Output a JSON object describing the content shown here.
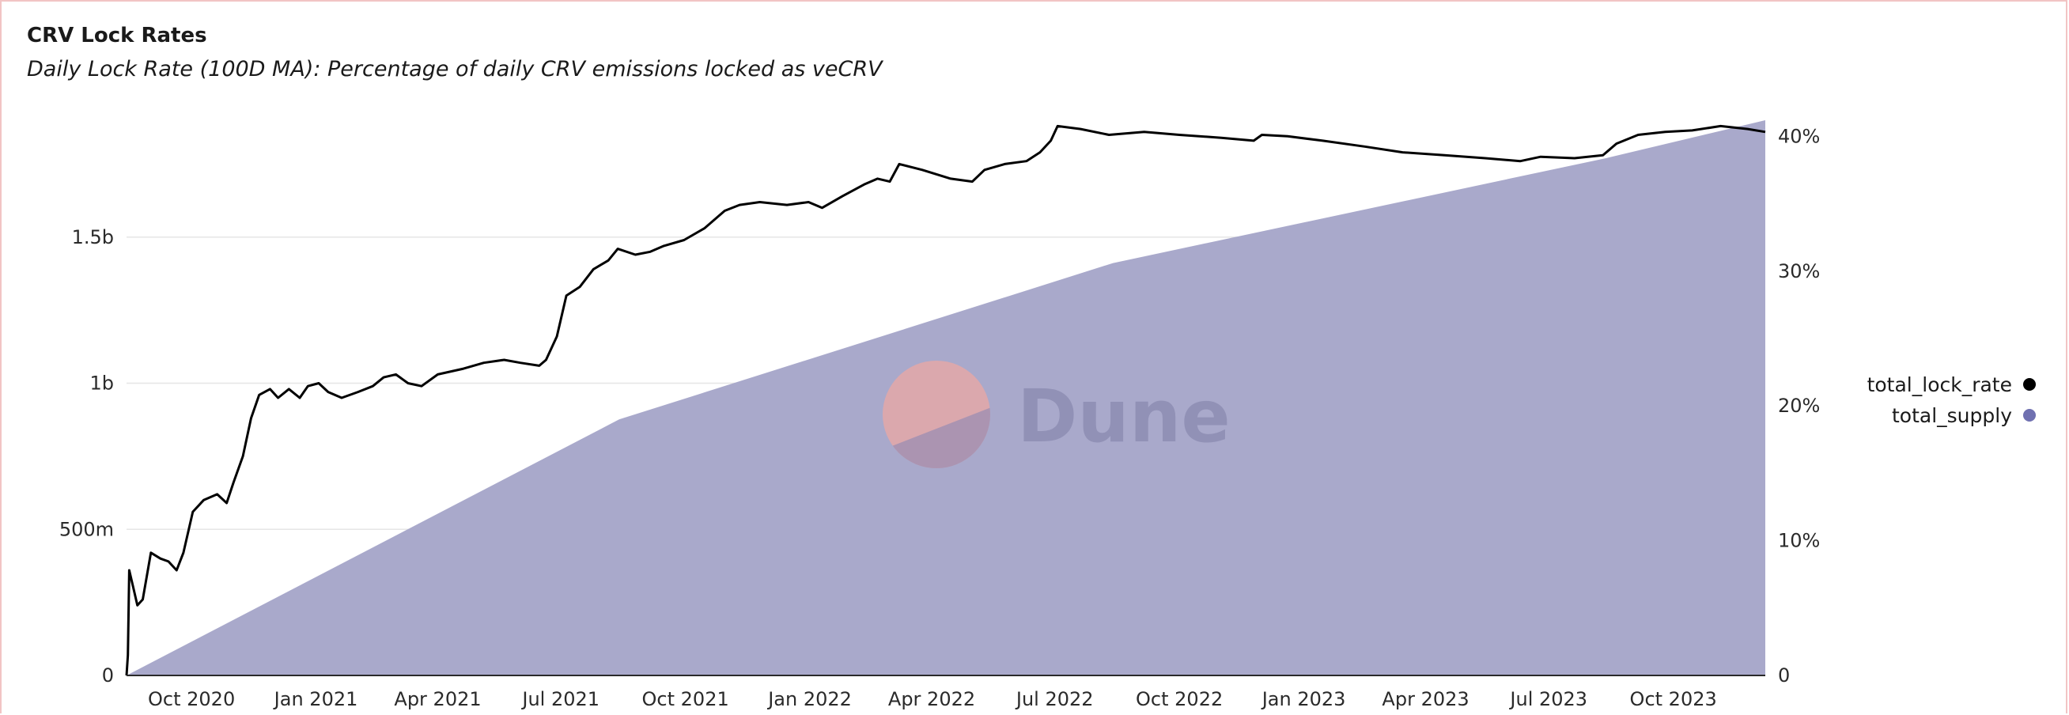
{
  "header": {
    "title": "CRV Lock Rates",
    "subtitle": "Daily Lock Rate (100D MA): Percentage of daily CRV emissions locked as veCRV"
  },
  "watermark": {
    "text": "Dune"
  },
  "colors": {
    "lock_rate": "#000000",
    "supply_fill": "#a9a9cb",
    "supply_legend": "#6f70b0",
    "grid": "#e6e6e6",
    "axis": "#2a2a2a"
  },
  "chart_data": {
    "type": "area",
    "title": "CRV Lock Rates",
    "x_tick_labels": [
      "Oct 2020",
      "Jan 2021",
      "Apr 2021",
      "Jul 2021",
      "Oct 2021",
      "Jan 2022",
      "Apr 2022",
      "Jul 2022",
      "Oct 2022",
      "Jan 2023",
      "Apr 2023",
      "Jul 2023",
      "Oct 2023"
    ],
    "x_tick_dates": [
      "2020-10-01",
      "2021-01-01",
      "2021-04-01",
      "2021-07-01",
      "2021-10-01",
      "2022-01-01",
      "2022-04-01",
      "2022-07-01",
      "2022-10-01",
      "2023-01-01",
      "2023-04-01",
      "2023-07-01",
      "2023-10-01"
    ],
    "xlim": [
      "2020-08-14",
      "2023-12-08"
    ],
    "y_left": {
      "ticks": [
        0,
        500000000,
        1000000000,
        1500000000
      ],
      "tick_labels": [
        "0",
        "500m",
        "1b",
        "1.5b"
      ],
      "lim": [
        0,
        1900000000
      ]
    },
    "y_right": {
      "ticks": [
        0,
        10,
        20,
        30,
        40
      ],
      "tick_labels": [
        "0",
        "10%",
        "20%",
        "30%",
        "40%"
      ],
      "lim": [
        0,
        41.2
      ]
    },
    "legend": {
      "position": "right"
    },
    "grid": true,
    "series": [
      {
        "name": "total_lock_rate",
        "axis": "left",
        "style": "line",
        "points": [
          [
            "2020-08-14",
            0
          ],
          [
            "2020-08-15",
            70000000
          ],
          [
            "2020-08-16",
            360000000
          ],
          [
            "2020-08-19",
            300000000
          ],
          [
            "2020-08-22",
            240000000
          ],
          [
            "2020-08-26",
            260000000
          ],
          [
            "2020-09-01",
            420000000
          ],
          [
            "2020-09-08",
            400000000
          ],
          [
            "2020-09-14",
            390000000
          ],
          [
            "2020-09-20",
            360000000
          ],
          [
            "2020-09-25",
            420000000
          ],
          [
            "2020-10-02",
            560000000
          ],
          [
            "2020-10-10",
            600000000
          ],
          [
            "2020-10-20",
            620000000
          ],
          [
            "2020-10-27",
            590000000
          ],
          [
            "2020-11-01",
            660000000
          ],
          [
            "2020-11-08",
            750000000
          ],
          [
            "2020-11-14",
            880000000
          ],
          [
            "2020-11-20",
            960000000
          ],
          [
            "2020-11-28",
            980000000
          ],
          [
            "2020-12-04",
            950000000
          ],
          [
            "2020-12-12",
            980000000
          ],
          [
            "2020-12-20",
            950000000
          ],
          [
            "2020-12-26",
            990000000
          ],
          [
            "2021-01-03",
            1000000000
          ],
          [
            "2021-01-10",
            970000000
          ],
          [
            "2021-01-20",
            950000000
          ],
          [
            "2021-02-01",
            970000000
          ],
          [
            "2021-02-12",
            990000000
          ],
          [
            "2021-02-20",
            1020000000
          ],
          [
            "2021-03-01",
            1030000000
          ],
          [
            "2021-03-10",
            1000000000
          ],
          [
            "2021-03-20",
            990000000
          ],
          [
            "2021-04-01",
            1030000000
          ],
          [
            "2021-04-20",
            1050000000
          ],
          [
            "2021-05-05",
            1070000000
          ],
          [
            "2021-05-20",
            1080000000
          ],
          [
            "2021-06-01",
            1070000000
          ],
          [
            "2021-06-15",
            1060000000
          ],
          [
            "2021-06-20",
            1080000000
          ],
          [
            "2021-06-28",
            1160000000
          ],
          [
            "2021-07-05",
            1300000000
          ],
          [
            "2021-07-15",
            1330000000
          ],
          [
            "2021-07-25",
            1390000000
          ],
          [
            "2021-08-05",
            1420000000
          ],
          [
            "2021-08-12",
            1460000000
          ],
          [
            "2021-08-25",
            1440000000
          ],
          [
            "2021-09-05",
            1450000000
          ],
          [
            "2021-09-15",
            1470000000
          ],
          [
            "2021-09-30",
            1490000000
          ],
          [
            "2021-10-15",
            1530000000
          ],
          [
            "2021-10-30",
            1590000000
          ],
          [
            "2021-11-10",
            1610000000
          ],
          [
            "2021-11-25",
            1620000000
          ],
          [
            "2021-12-15",
            1610000000
          ],
          [
            "2021-12-31",
            1620000000
          ],
          [
            "2022-01-10",
            1600000000
          ],
          [
            "2022-01-25",
            1640000000
          ],
          [
            "2022-02-10",
            1680000000
          ],
          [
            "2022-02-20",
            1700000000
          ],
          [
            "2022-03-01",
            1690000000
          ],
          [
            "2022-03-08",
            1750000000
          ],
          [
            "2022-03-25",
            1730000000
          ],
          [
            "2022-04-15",
            1700000000
          ],
          [
            "2022-05-01",
            1690000000
          ],
          [
            "2022-05-10",
            1730000000
          ],
          [
            "2022-05-25",
            1750000000
          ],
          [
            "2022-06-10",
            1760000000
          ],
          [
            "2022-06-20",
            1790000000
          ],
          [
            "2022-06-28",
            1830000000
          ],
          [
            "2022-07-03",
            1880000000
          ],
          [
            "2022-07-20",
            1870000000
          ],
          [
            "2022-08-10",
            1850000000
          ],
          [
            "2022-09-05",
            1860000000
          ],
          [
            "2022-10-01",
            1850000000
          ],
          [
            "2022-11-01",
            1840000000
          ],
          [
            "2022-11-25",
            1830000000
          ],
          [
            "2022-12-01",
            1850000000
          ],
          [
            "2022-12-20",
            1845000000
          ],
          [
            "2023-01-15",
            1830000000
          ],
          [
            "2023-02-15",
            1810000000
          ],
          [
            "2023-03-15",
            1790000000
          ],
          [
            "2023-04-15",
            1780000000
          ],
          [
            "2023-05-15",
            1770000000
          ],
          [
            "2023-06-10",
            1760000000
          ],
          [
            "2023-06-25",
            1775000000
          ],
          [
            "2023-07-20",
            1770000000
          ],
          [
            "2023-08-10",
            1780000000
          ],
          [
            "2023-08-20",
            1820000000
          ],
          [
            "2023-09-05",
            1850000000
          ],
          [
            "2023-09-25",
            1860000000
          ],
          [
            "2023-10-15",
            1865000000
          ],
          [
            "2023-11-05",
            1880000000
          ],
          [
            "2023-11-25",
            1870000000
          ],
          [
            "2023-12-08",
            1860000000
          ]
        ]
      },
      {
        "name": "total_supply",
        "axis": "right",
        "style": "area",
        "points": [
          [
            "2020-08-14",
            0
          ],
          [
            "2021-08-13",
            19.0
          ],
          [
            "2022-08-13",
            30.6
          ],
          [
            "2023-08-13",
            38.4
          ],
          [
            "2023-12-08",
            41.2
          ]
        ]
      }
    ]
  }
}
